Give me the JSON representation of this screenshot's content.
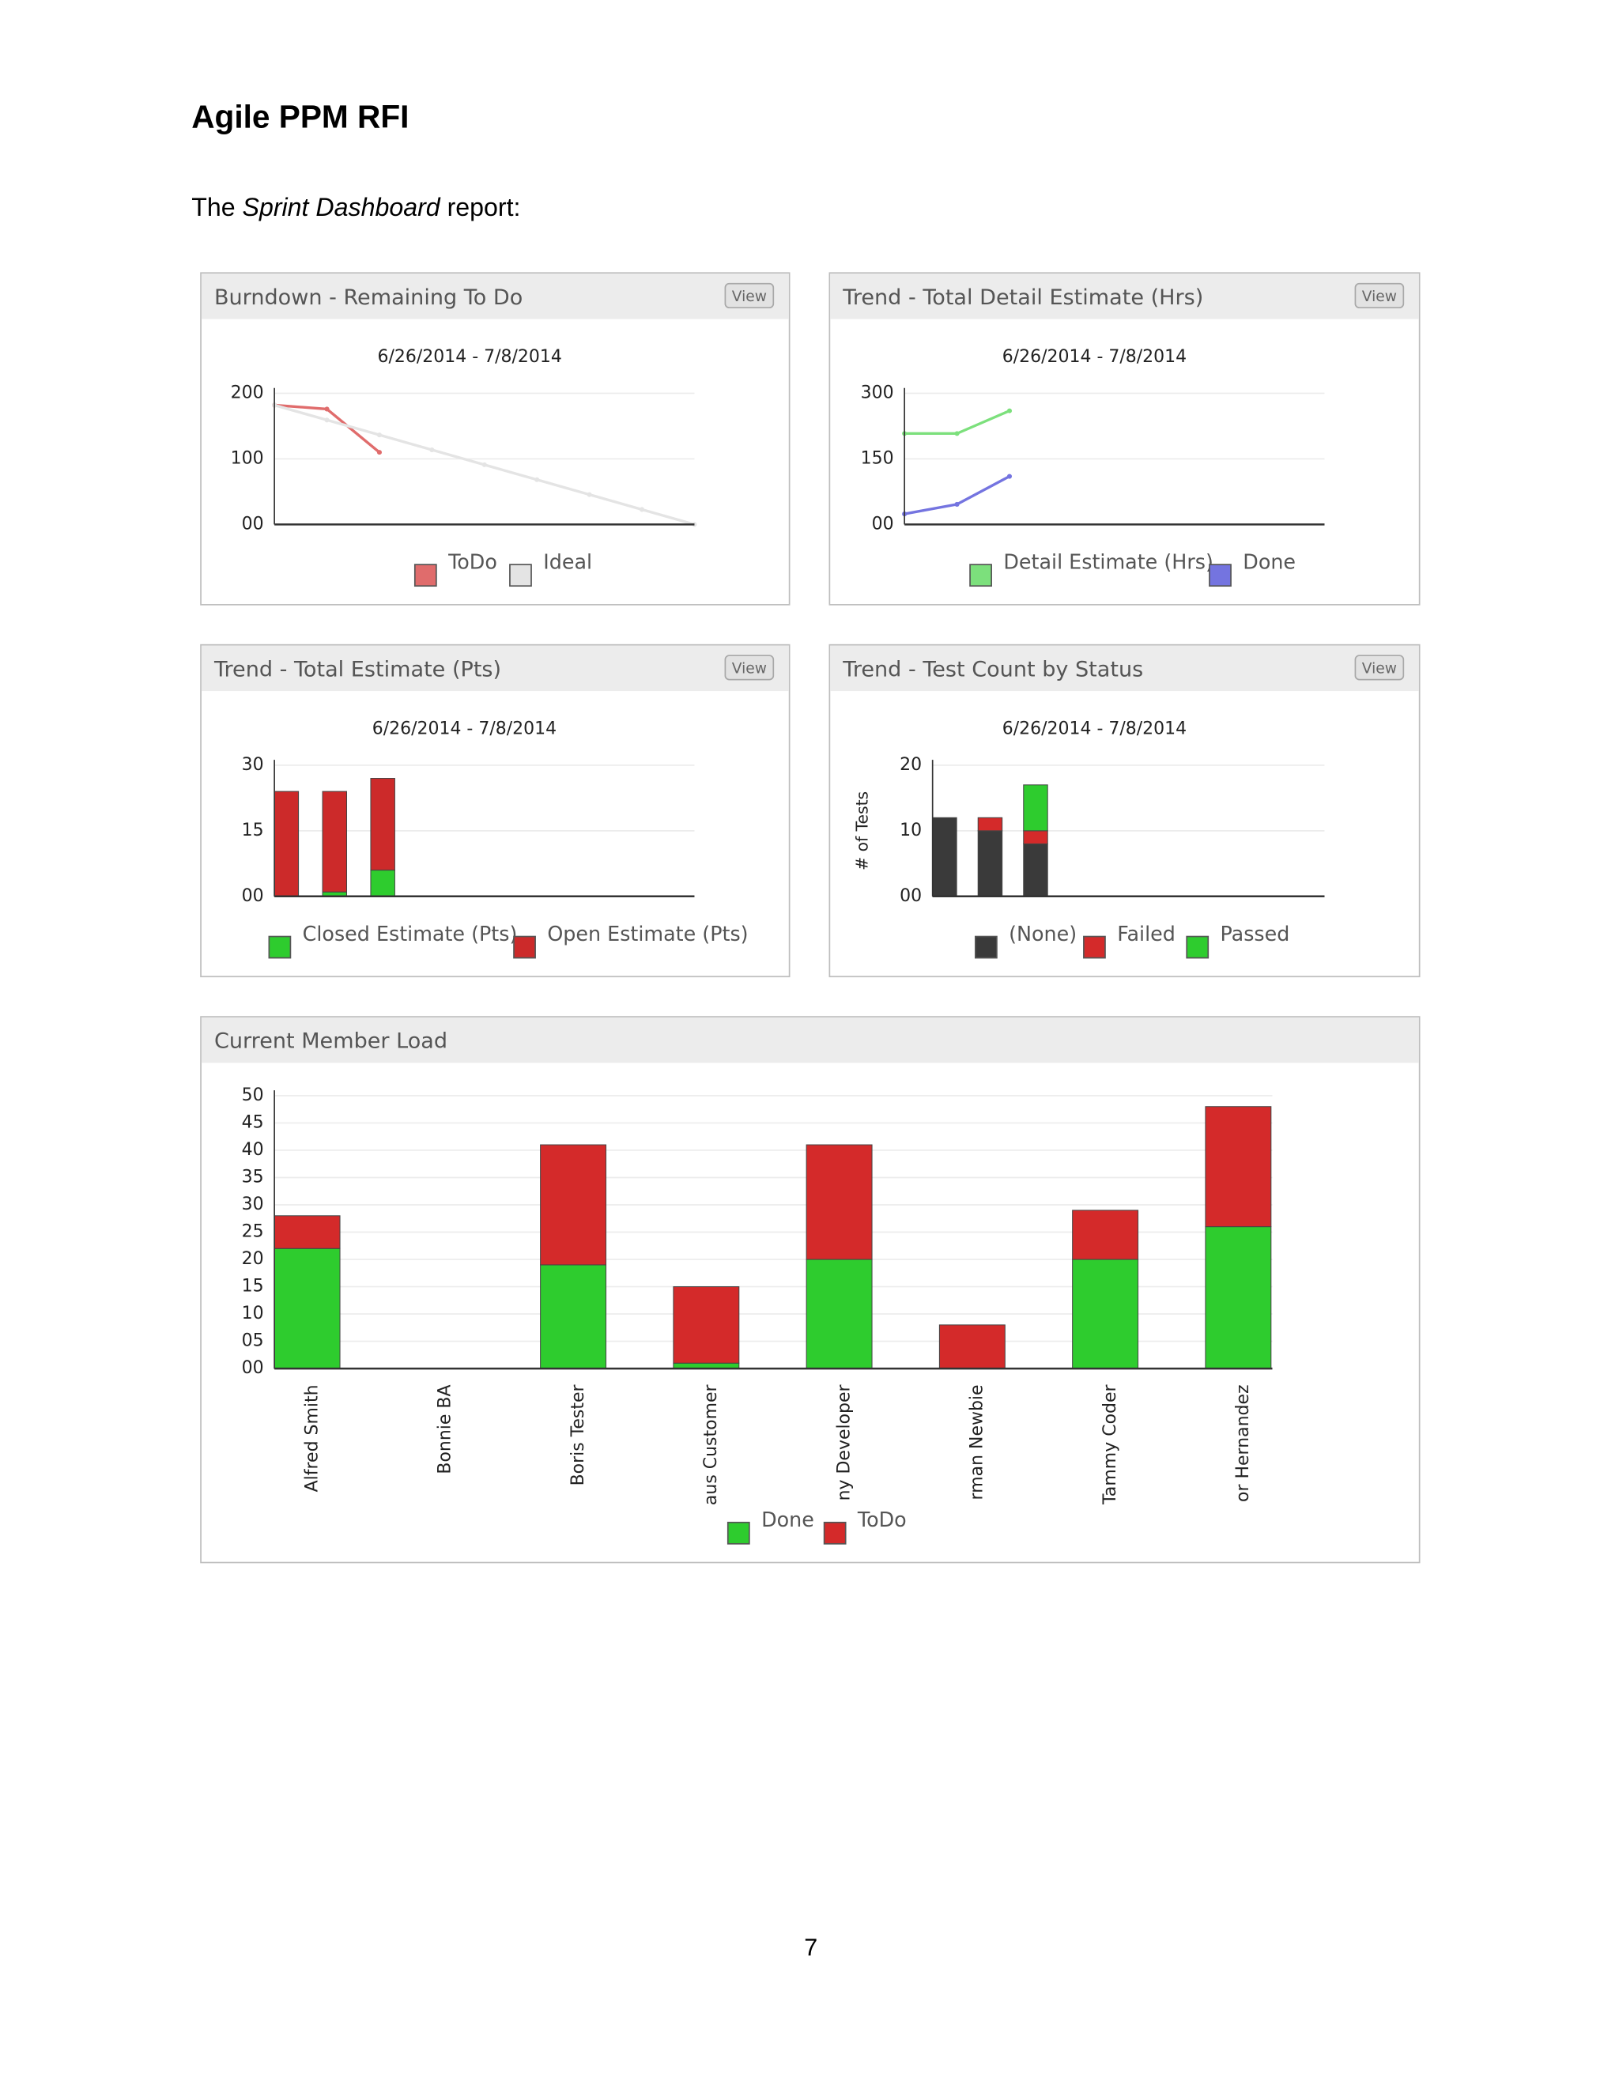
{
  "header": {
    "title": "Agile PPM RFI"
  },
  "intro": {
    "before": "The ",
    "emphasis": "Sprint Dashboard",
    "after": " report:"
  },
  "footer": {
    "page_number": "7"
  },
  "chart_data": [
    {
      "type": "line",
      "panel_title": "Burndown - Remaining To Do",
      "button": "View",
      "title": "6/26/2014 - 7/8/2014",
      "categories": [
        null,
        null,
        null,
        null,
        null,
        null,
        null,
        null,
        null
      ],
      "series": [
        {
          "name": "ToDo",
          "color": "#e06c6c",
          "values": [
            182,
            176,
            110,
            null,
            null,
            null,
            null,
            null,
            null
          ]
        },
        {
          "name": "Ideal",
          "color": "#e4e4e4",
          "values": [
            182,
            159.25,
            136.5,
            113.75,
            91,
            68.25,
            45.5,
            22.75,
            0
          ]
        }
      ],
      "ylim": [
        0,
        200
      ],
      "yticks": [
        {
          "value": 0,
          "label": "00"
        },
        100,
        200
      ],
      "grid": true
    },
    {
      "type": "line",
      "panel_title": "Trend - Total Detail Estimate (Hrs)",
      "button": "View",
      "title": "6/26/2014 - 7/8/2014",
      "categories": [
        null,
        null,
        null,
        null,
        null,
        null,
        null,
        null,
        null
      ],
      "series": [
        {
          "name": "Detail Estimate (Hrs)",
          "color": "#7ce07c",
          "values": [
            208,
            208,
            260,
            null,
            null,
            null,
            null,
            null,
            null
          ]
        },
        {
          "name": "Done",
          "color": "#7474e0",
          "values": [
            24,
            46,
            110,
            null,
            null,
            null,
            null,
            null,
            null
          ]
        }
      ],
      "ylim": [
        0,
        300
      ],
      "yticks": [
        {
          "value": 0,
          "label": "00"
        },
        150,
        300
      ],
      "grid": true
    },
    {
      "type": "bar",
      "stacked": true,
      "panel_title": "Trend - Total Estimate (Pts)",
      "button": "View",
      "title": "6/26/2014 - 7/8/2014",
      "categories": [
        null,
        null,
        null,
        null,
        null,
        null,
        null,
        null,
        null
      ],
      "series": [
        {
          "name": "Closed Estimate (Pts)",
          "color": "#2ecc2e",
          "values": [
            0,
            1,
            6,
            null,
            null,
            null,
            null,
            null,
            null
          ]
        },
        {
          "name": "Open Estimate (Pts)",
          "color": "#cc2a2a",
          "values": [
            24,
            23,
            21,
            null,
            null,
            null,
            null,
            null,
            null
          ]
        }
      ],
      "ylim": [
        0,
        30
      ],
      "yticks": [
        {
          "value": 0,
          "label": "00"
        },
        15,
        30
      ],
      "grid": true
    },
    {
      "type": "bar",
      "stacked": true,
      "panel_title": "Trend - Test Count by Status",
      "button": "View",
      "title": "6/26/2014 - 7/8/2014",
      "y_label": "# of Tests",
      "categories": [
        null,
        null,
        null,
        null,
        null,
        null,
        null,
        null,
        null
      ],
      "series": [
        {
          "name": "(None)",
          "color": "#3a3a3a",
          "values": [
            12,
            10,
            8,
            null,
            null,
            null,
            null,
            null,
            null
          ]
        },
        {
          "name": "Failed",
          "color": "#d42a2a",
          "values": [
            0,
            2,
            2,
            null,
            null,
            null,
            null,
            null,
            null
          ]
        },
        {
          "name": "Passed",
          "color": "#2ecc2e",
          "values": [
            0,
            0,
            7,
            null,
            null,
            null,
            null,
            null,
            null
          ]
        }
      ],
      "ylim": [
        0,
        20
      ],
      "yticks": [
        {
          "value": 0,
          "label": "00"
        },
        10,
        20
      ],
      "grid": true
    },
    {
      "type": "bar",
      "stacked": true,
      "panel_title": "Current Member Load",
      "categories": [
        "Alfred Smith",
        "Bonnie BA",
        "Boris Tester",
        "aus Customer",
        "ny Developer",
        "rman Newbie",
        "Tammy Coder",
        "or Hernandez"
      ],
      "series": [
        {
          "name": "Done",
          "color": "#2ecc2e",
          "values": [
            22,
            0,
            19,
            1,
            20,
            0,
            20,
            26
          ]
        },
        {
          "name": "ToDo",
          "color": "#d42a2a",
          "values": [
            6,
            0,
            22,
            14,
            21,
            8,
            9,
            22
          ]
        }
      ],
      "ylim": [
        0,
        50
      ],
      "yticks": [
        {
          "value": 0,
          "label": "00"
        },
        {
          "value": 5,
          "label": "05"
        },
        10,
        15,
        20,
        25,
        30,
        35,
        40,
        45,
        50
      ],
      "grid": true
    }
  ]
}
